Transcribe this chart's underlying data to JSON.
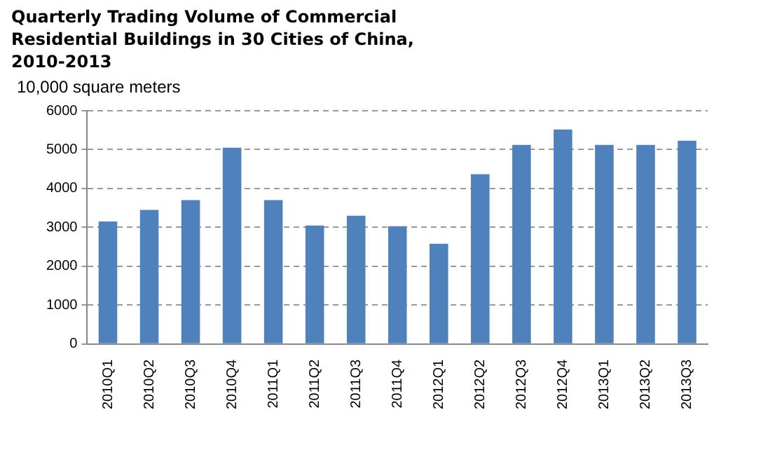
{
  "chart_data": {
    "type": "bar",
    "title": "Quarterly Trading Volume of Commercial Residential Buildings in 30 Cities of China, 2010-2013",
    "ylabel": "10,000 square meters",
    "categories": [
      "2010Q1",
      "2010Q2",
      "2010Q3",
      "2010Q4",
      "2011Q1",
      "2011Q2",
      "2011Q3",
      "2011Q4",
      "2012Q1",
      "2012Q2",
      "2012Q3",
      "2012Q4",
      "2013Q1",
      "2013Q2",
      "2013Q3"
    ],
    "values": [
      3150,
      3450,
      3700,
      5050,
      3700,
      3050,
      3300,
      3030,
      2580,
      4370,
      5120,
      5520,
      5120,
      5120,
      5230
    ],
    "color": "#4f81bd",
    "ylim": [
      0,
      6000
    ],
    "yticks": [
      0,
      1000,
      2000,
      3000,
      4000,
      5000,
      6000
    ],
    "grid": "y",
    "legend": false
  }
}
